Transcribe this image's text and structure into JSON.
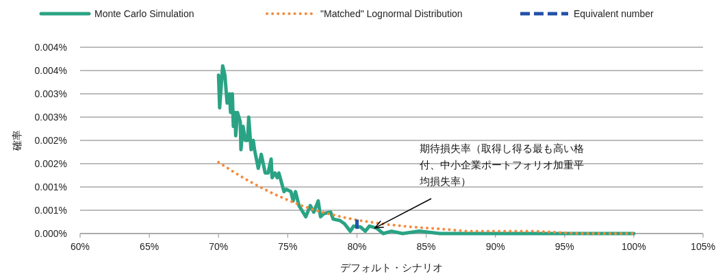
{
  "chart_data": {
    "type": "line",
    "xlabel": "デフォルト・シナリオ",
    "ylabel": "確率",
    "xlim": [
      60,
      105
    ],
    "xticks": [
      {
        "value": 60,
        "label": "60%"
      },
      {
        "value": 65,
        "label": "65%"
      },
      {
        "value": 70,
        "label": "70%"
      },
      {
        "value": 75,
        "label": "75%"
      },
      {
        "value": 80,
        "label": "80%"
      },
      {
        "value": 85,
        "label": "85%"
      },
      {
        "value": 90,
        "label": "90%"
      },
      {
        "value": 95,
        "label": "95%"
      },
      {
        "value": 100,
        "label": "100%"
      },
      {
        "value": 105,
        "label": "105%"
      }
    ],
    "ylim": [
      0,
      0.004
    ],
    "yticks": [
      {
        "value": 0,
        "label": "0.000%"
      },
      {
        "value": 0.0005,
        "label": "0.001%"
      },
      {
        "value": 0.001,
        "label": "0.001%"
      },
      {
        "value": 0.0015,
        "label": "0.002%"
      },
      {
        "value": 0.002,
        "label": "0.002%"
      },
      {
        "value": 0.0025,
        "label": "0.003%"
      },
      {
        "value": 0.003,
        "label": "0.003%"
      },
      {
        "value": 0.0035,
        "label": "0.004%"
      },
      {
        "value": 0.004,
        "label": "0.004%"
      }
    ],
    "grid": "y",
    "legend": "top",
    "series": [
      {
        "name": "Monte Carlo Simulation",
        "color": "#2aa384",
        "line_style": "solid",
        "x": [
          70.0,
          70.08,
          70.3,
          70.46,
          70.62,
          70.79,
          70.87,
          71.0,
          71.07,
          71.2,
          71.24,
          71.37,
          71.57,
          71.62,
          71.77,
          71.94,
          72.1,
          72.18,
          72.35,
          72.51,
          72.6,
          72.87,
          73.09,
          73.37,
          73.58,
          73.8,
          73.87,
          74.08,
          74.24,
          74.36,
          74.73,
          74.9,
          75.23,
          75.39,
          75.56,
          75.81,
          76.3,
          76.63,
          76.88,
          77.2,
          77.37,
          77.62,
          78.1,
          78.28,
          78.77,
          79.1,
          79.52,
          79.76,
          80.26,
          80.6,
          80.9,
          81.4,
          81.9,
          82.5,
          83.3,
          84.5,
          86,
          90,
          95,
          100
        ],
        "values": [
          0.0034,
          0.0027,
          0.0036,
          0.0034,
          0.0028,
          0.003,
          0.0026,
          0.003,
          0.0023,
          0.0026,
          0.0021,
          0.0026,
          0.0024,
          0.0018,
          0.0023,
          0.002,
          0.002,
          0.0025,
          0.0018,
          0.002,
          0.0018,
          0.0014,
          0.0017,
          0.0013,
          0.0013,
          0.0016,
          0.0012,
          0.0013,
          0.0012,
          0.0013,
          0.0009,
          0.00095,
          0.0009,
          0.0007,
          0.0009,
          0.0006,
          0.00036,
          0.0006,
          0.00046,
          0.0007,
          0.00036,
          0.00043,
          0.00046,
          0.00031,
          0.00028,
          0.00021,
          5e-05,
          0.00016,
          0.00014,
          5e-05,
          0.00016,
          0.00012,
          0,
          5e-05,
          0,
          5e-05,
          0,
          0,
          0,
          0
        ]
      },
      {
        "name": "\"Matched\" Lognormal Distribution",
        "color": "#f58a3c",
        "line_style": "dotted",
        "x": [
          70,
          71,
          72,
          73,
          74,
          75,
          76,
          77,
          78,
          79,
          80,
          82,
          84,
          86,
          88,
          90,
          93,
          96,
          100
        ],
        "values": [
          0.00153,
          0.00134,
          0.00116,
          0.001,
          0.00085,
          0.00072,
          0.0006,
          0.0005,
          0.00042,
          0.00035,
          0.00029,
          0.0002,
          0.00014,
          0.0001,
          5e-05,
          5e-05,
          5e-05,
          0,
          0
        ]
      },
      {
        "name": "Equivalent number",
        "color": "#2350a8",
        "line_style": "dashed",
        "x": [
          80,
          80
        ],
        "values": [
          0.0003,
          0.0001
        ]
      }
    ],
    "annotations": [
      {
        "text": "期待損失率（取得し得る最も高い格付、中小企業ポートフォリオ加重平均損失率）",
        "x": 81.3,
        "y": 0.00012
      }
    ]
  }
}
